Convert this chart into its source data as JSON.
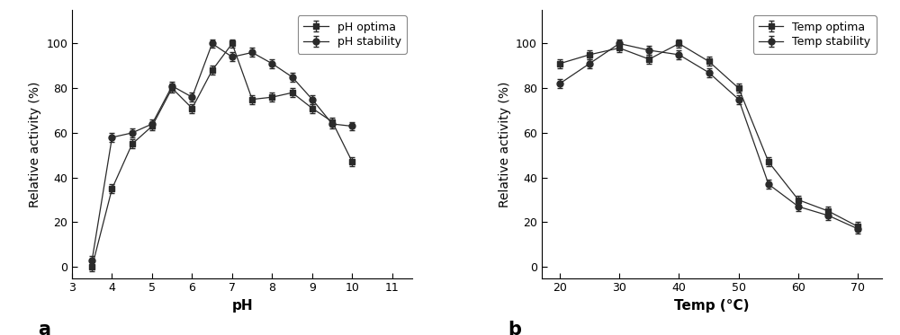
{
  "ph_optima_x": [
    3.5,
    4.0,
    4.5,
    5.0,
    5.5,
    6.0,
    6.5,
    7.0,
    7.5,
    8.0,
    8.5,
    9.0,
    9.5,
    10.0
  ],
  "ph_optima_y": [
    0,
    35,
    55,
    63,
    80,
    71,
    88,
    100,
    75,
    76,
    78,
    71,
    65,
    47
  ],
  "ph_stability_x": [
    3.5,
    4.0,
    4.5,
    5.0,
    5.5,
    6.0,
    6.5,
    7.0,
    7.5,
    8.0,
    8.5,
    9.0,
    9.5,
    10.0
  ],
  "ph_stability_y": [
    3,
    58,
    60,
    64,
    81,
    76,
    100,
    94,
    96,
    91,
    85,
    75,
    64,
    63
  ],
  "temp_optima_x": [
    20,
    25,
    30,
    35,
    40,
    45,
    50,
    55,
    60,
    65,
    70
  ],
  "temp_optima_y": [
    91,
    95,
    98,
    93,
    100,
    92,
    80,
    47,
    30,
    25,
    18
  ],
  "temp_stability_x": [
    20,
    25,
    30,
    35,
    40,
    45,
    50,
    55,
    60,
    65,
    70
  ],
  "temp_stability_y": [
    82,
    91,
    100,
    97,
    95,
    87,
    75,
    37,
    27,
    23,
    17
  ],
  "ph_xlabel": "pH",
  "ph_ylabel": "Relative activity (%)",
  "temp_xlabel": "Temp (°C)",
  "temp_ylabel": "Relative activity (%)",
  "ph_optima_label": "pH optima",
  "ph_stability_label": "pH stability",
  "temp_optima_label": "Temp optima",
  "temp_stability_label": "Temp stability",
  "ph_xlim": [
    3.0,
    11.5
  ],
  "ph_ylim": [
    -5,
    115
  ],
  "temp_xlim": [
    17,
    74
  ],
  "temp_ylim": [
    -5,
    115
  ],
  "ph_xticks": [
    3,
    4,
    5,
    6,
    7,
    8,
    9,
    10,
    11
  ],
  "temp_xticks": [
    20,
    30,
    40,
    50,
    60,
    70
  ],
  "yticks": [
    0,
    20,
    40,
    60,
    80,
    100
  ],
  "label_a": "a",
  "label_b": "b",
  "line_color": "#2a2a2a",
  "error_bar_size": 2.0,
  "marker_size": 5,
  "tick_fontsize": 9,
  "axis_label_fontsize": 11,
  "legend_fontsize": 9
}
